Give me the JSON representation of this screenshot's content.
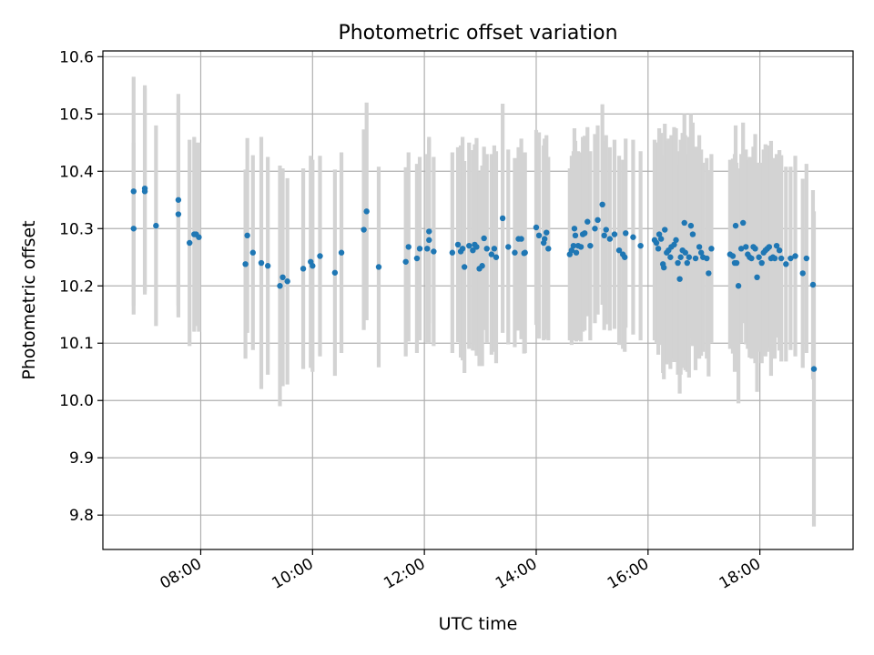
{
  "chart_data": {
    "type": "scatter",
    "title": "Photometric offset variation",
    "xlabel": "UTC time",
    "ylabel": "Photometric offset",
    "x_unit": "hours UTC",
    "xlim": [
      "06:15",
      "19:40"
    ],
    "ylim": [
      9.74,
      10.61
    ],
    "x_ticks": [
      "08:00",
      "10:00",
      "12:00",
      "14:00",
      "16:00",
      "18:00"
    ],
    "y_ticks": [
      "9.8",
      "9.9",
      "10.0",
      "10.1",
      "10.2",
      "10.3",
      "10.4",
      "10.5",
      "10.6"
    ],
    "grid": true,
    "marker_color": "#1f77b4",
    "errorbar_color": "#d3d3d3",
    "series": [
      {
        "x": [
          "06:48",
          "06:48",
          "07:00",
          "07:00",
          "07:12",
          "07:36",
          "07:36",
          "07:48",
          "07:53",
          "07:55",
          "07:58",
          "08:48",
          "08:50",
          "08:56",
          "09:05",
          "09:12",
          "09:25",
          "09:28",
          "09:33",
          "09:50",
          "09:58",
          "10:00",
          "10:08",
          "10:24",
          "10:31",
          "10:55",
          "10:58",
          "11:11",
          "11:40",
          "11:43",
          "11:52",
          "11:55",
          "12:03",
          "12:05",
          "12:05",
          "12:10",
          "12:30",
          "12:36",
          "12:39",
          "12:41",
          "12:43",
          "12:48",
          "12:52",
          "12:54",
          "12:56",
          "12:59",
          "13:02",
          "13:04",
          "13:07",
          "13:12",
          "13:15",
          "13:17",
          "13:24",
          "13:30",
          "13:37",
          "13:41",
          "13:44",
          "13:47",
          "13:48",
          "14:00",
          "14:03",
          "14:08",
          "14:09",
          "14:11",
          "14:13",
          "14:36",
          "14:38",
          "14:40",
          "14:41",
          "14:42",
          "14:43",
          "14:45",
          "14:48",
          "14:50",
          "14:52",
          "14:55",
          "14:58",
          "15:03",
          "15:06",
          "15:11",
          "15:13",
          "15:15",
          "15:19",
          "15:24",
          "15:29",
          "15:33",
          "15:35",
          "15:36",
          "15:44",
          "15:52",
          "16:07",
          "16:09",
          "16:11",
          "16:12",
          "16:14",
          "16:16",
          "16:17",
          "16:18",
          "16:20",
          "16:22",
          "16:24",
          "16:25",
          "16:28",
          "16:30",
          "16:32",
          "16:34",
          "16:35",
          "16:37",
          "16:39",
          "16:40",
          "16:42",
          "16:44",
          "16:46",
          "16:48",
          "16:51",
          "16:55",
          "16:57",
          "16:59",
          "17:03",
          "17:05",
          "17:08",
          "17:28",
          "17:31",
          "17:33",
          "17:34",
          "17:35",
          "17:37",
          "17:40",
          "17:42",
          "17:45",
          "17:47",
          "17:49",
          "17:51",
          "17:53",
          "17:55",
          "17:57",
          "17:59",
          "18:02",
          "18:04",
          "18:06",
          "18:08",
          "18:10",
          "18:12",
          "18:14",
          "18:16",
          "18:18",
          "18:21",
          "18:23",
          "18:28",
          "18:33",
          "18:38",
          "18:46",
          "18:50",
          "18:57"
        ],
        "y": [
          10.365,
          10.3,
          10.37,
          10.365,
          10.305,
          10.35,
          10.325,
          10.275,
          10.29,
          10.29,
          10.285,
          10.238,
          10.288,
          10.258,
          10.24,
          10.235,
          10.2,
          10.215,
          10.208,
          10.23,
          10.242,
          10.235,
          10.252,
          10.223,
          10.258,
          10.298,
          10.33,
          10.233,
          10.242,
          10.268,
          10.248,
          10.265,
          10.265,
          10.28,
          10.295,
          10.26,
          10.258,
          10.272,
          10.26,
          10.265,
          10.233,
          10.27,
          10.262,
          10.272,
          10.268,
          10.23,
          10.235,
          10.283,
          10.265,
          10.255,
          10.265,
          10.25,
          10.318,
          10.268,
          10.258,
          10.282,
          10.282,
          10.257,
          10.258,
          10.302,
          10.288,
          10.275,
          10.282,
          10.293,
          10.265,
          10.255,
          10.262,
          10.27,
          10.3,
          10.288,
          10.258,
          10.27,
          10.268,
          10.29,
          10.292,
          10.312,
          10.27,
          10.3,
          10.315,
          10.342,
          10.288,
          10.298,
          10.282,
          10.29,
          10.262,
          10.255,
          10.25,
          10.292,
          10.285,
          10.27,
          10.28,
          10.275,
          10.265,
          10.29,
          10.282,
          10.238,
          10.232,
          10.298,
          10.258,
          10.262,
          10.25,
          10.268,
          10.272,
          10.28,
          10.24,
          10.212,
          10.25,
          10.262,
          10.31,
          10.258,
          10.24,
          10.25,
          10.305,
          10.29,
          10.248,
          10.268,
          10.258,
          10.25,
          10.248,
          10.222,
          10.265,
          10.255,
          10.252,
          10.24,
          10.305,
          10.24,
          10.2,
          10.265,
          10.31,
          10.268,
          10.255,
          10.25,
          10.248,
          10.268,
          10.265,
          10.215,
          10.25,
          10.24,
          10.258,
          10.262,
          10.265,
          10.268,
          10.248,
          10.25,
          10.248,
          10.27,
          10.262,
          10.248,
          10.238,
          10.248,
          10.252,
          10.222,
          10.248,
          10.202
        ],
        "yerr": [
          0.2,
          0.15,
          0.18,
          0.18,
          0.175,
          0.185,
          0.18,
          0.18,
          0.17,
          0.16,
          0.165,
          0.165,
          0.17,
          0.17,
          0.22,
          0.19,
          0.21,
          0.19,
          0.18,
          0.175,
          0.185,
          0.185,
          0.175,
          0.18,
          0.175,
          0.175,
          0.19,
          0.175,
          0.165,
          0.165,
          0.165,
          0.16,
          0.165,
          0.18,
          0.16,
          0.165,
          0.175,
          0.17,
          0.185,
          0.195,
          0.185,
          0.18,
          0.175,
          0.175,
          0.19,
          0.17,
          0.175,
          0.16,
          0.165,
          0.175,
          0.18,
          0.185,
          0.2,
          0.17,
          0.165,
          0.16,
          0.175,
          0.175,
          0.175,
          0.17,
          0.18,
          0.17,
          0.175,
          0.17,
          0.16,
          0.15,
          0.165,
          0.165,
          0.175,
          0.165,
          0.155,
          0.165,
          0.165,
          0.17,
          0.17,
          0.165,
          0.165,
          0.165,
          0.165,
          0.175,
          0.165,
          0.165,
          0.16,
          0.165,
          0.165,
          0.165,
          0.165,
          0.165,
          0.17,
          0.165,
          0.175,
          0.175,
          0.185,
          0.185,
          0.185,
          0.19,
          0.195,
          0.185,
          0.195,
          0.195,
          0.195,
          0.195,
          0.205,
          0.195,
          0.195,
          0.2,
          0.205,
          0.205,
          0.19,
          0.205,
          0.19,
          0.21,
          0.195,
          0.195,
          0.195,
          0.195,
          0.18,
          0.165,
          0.175,
          0.18,
          0.165,
          0.165,
          0.17,
          0.19,
          0.175,
          0.175,
          0.205,
          0.165,
          0.175,
          0.17,
          0.165,
          0.175,
          0.175,
          0.175,
          0.2,
          0.2,
          0.165,
          0.175,
          0.18,
          0.185,
          0.18,
          0.175,
          0.205,
          0.165,
          0.175,
          0.16,
          0.175,
          0.18,
          0.17,
          0.16,
          0.175,
          0.165,
          0.165,
          0.165
        ]
      },
      {
        "x": [
          "18:58"
        ],
        "y": [
          10.055
        ],
        "yerr": [
          0.275
        ]
      }
    ]
  }
}
